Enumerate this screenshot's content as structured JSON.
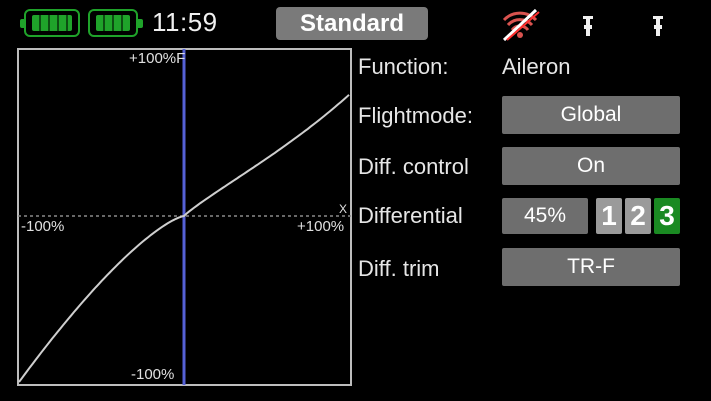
{
  "status": {
    "clock": "11:59",
    "mode": "Standard",
    "icons": [
      "battery-tx-icon",
      "battery-rx-icon",
      "signal-off-icon",
      "trim-indicator-icon",
      "trim-indicator-icon"
    ]
  },
  "graph": {
    "top_label": "+100%",
    "top_marker": "F",
    "bottom_label": "-100%",
    "left_label": "-100%",
    "right_label": "+100%",
    "right_marker": "X",
    "differential_percent": 45
  },
  "panel": {
    "function_label": "Function:",
    "function_value": "Aileron",
    "flightmode_label": "Flightmode:",
    "flightmode_value": "Global",
    "diff_control_label": "Diff. control",
    "diff_control_value": "On",
    "differential_label": "Differential",
    "differential_value": "45%",
    "rate_1": "1",
    "rate_2": "2",
    "rate_3": "3",
    "diff_trim_label": "Diff. trim",
    "diff_trim_value": "TR-F"
  },
  "colors": {
    "accent_green": "#1fa32a",
    "button_grey": "#6e6e6e",
    "axis_blue": "#5561d6",
    "curve": "#cfcfcf"
  }
}
